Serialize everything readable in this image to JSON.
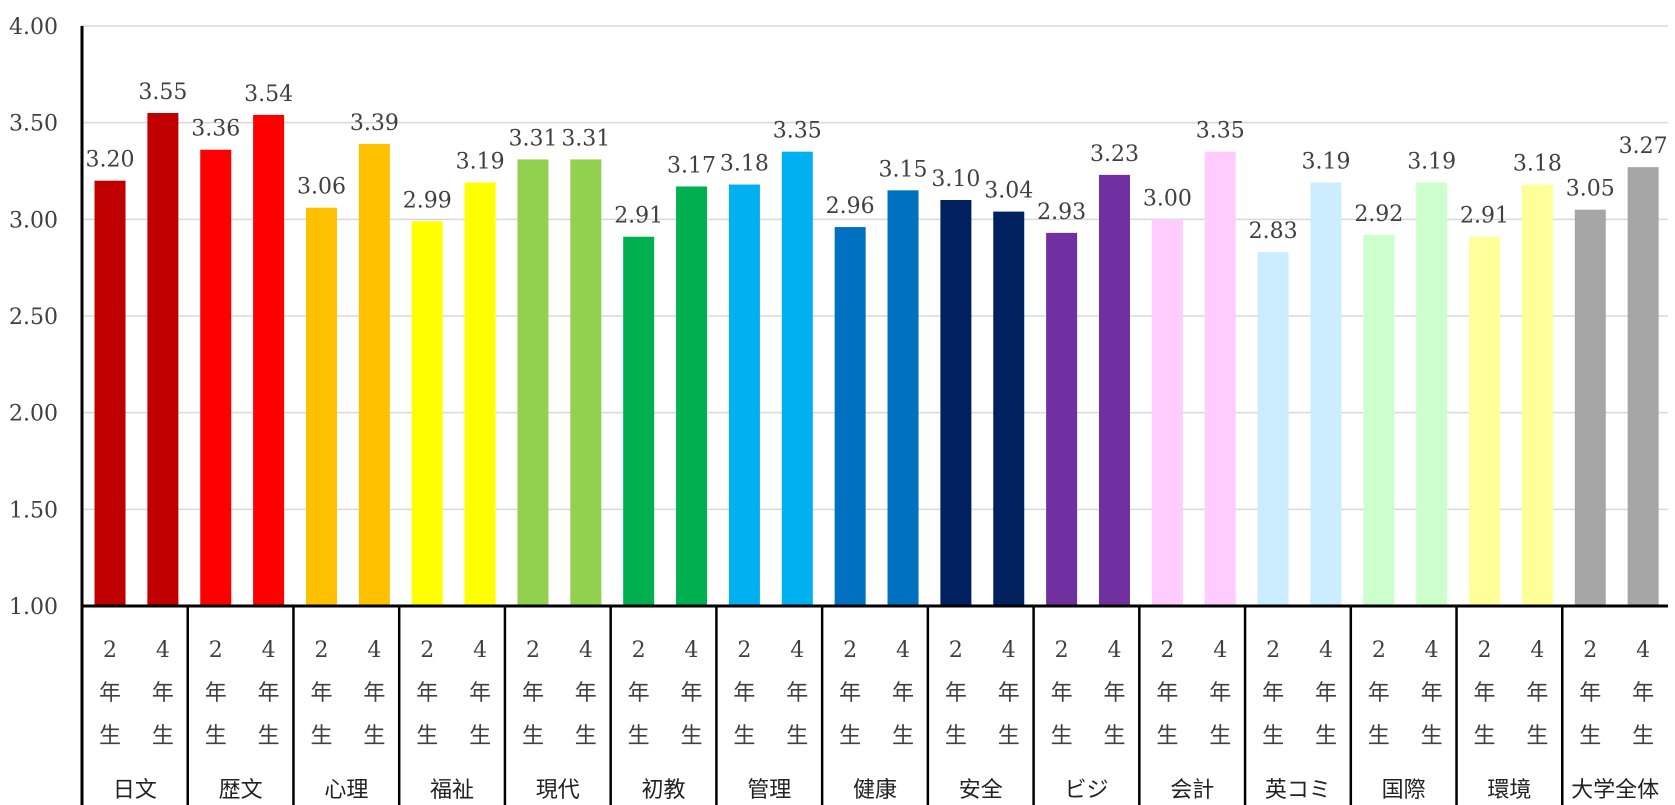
{
  "chart_data": {
    "type": "bar",
    "ylim": [
      1.0,
      4.0
    ],
    "y_ticks": [
      "1.00",
      "1.50",
      "2.00",
      "2.50",
      "3.00",
      "3.50",
      "4.00"
    ],
    "grid": true,
    "categories": [
      "日文",
      "歴文",
      "心理",
      "福祉",
      "現代",
      "初教",
      "管理",
      "健康",
      "安全",
      "ビジ",
      "会計",
      "英コミ",
      "国際",
      "環境",
      "大学全体"
    ],
    "subcategories": [
      [
        "2",
        "年",
        "生"
      ],
      [
        "4",
        "年",
        "生"
      ]
    ],
    "values_2nd_year": [
      3.2,
      3.36,
      3.06,
      2.99,
      3.31,
      2.91,
      3.18,
      2.96,
      3.1,
      2.93,
      3.0,
      2.83,
      2.92,
      2.91,
      3.05
    ],
    "values_4th_year": [
      3.55,
      3.54,
      3.39,
      3.19,
      3.31,
      3.17,
      3.35,
      3.15,
      3.04,
      3.23,
      3.35,
      3.19,
      3.19,
      3.18,
      3.27
    ],
    "labels_2nd_year": [
      "3.20",
      "3.36",
      "3.06",
      "2.99",
      "3.31",
      "2.91",
      "3.18",
      "2.96",
      "3.10",
      "2.93",
      "3.00",
      "2.83",
      "2.92",
      "2.91",
      "3.05"
    ],
    "labels_4th_year": [
      "3.55",
      "3.54",
      "3.39",
      "3.19",
      "3.31",
      "3.17",
      "3.35",
      "3.15",
      "3.04",
      "3.23",
      "3.35",
      "3.19",
      "3.19",
      "3.18",
      "3.27"
    ],
    "colors": [
      "#C00000",
      "#FF0000",
      "#FFC000",
      "#FFFF00",
      "#92D050",
      "#00B050",
      "#00B0F0",
      "#0070C0",
      "#002060",
      "#7030A0",
      "#FFCCFF",
      "#CCECFF",
      "#CCFFCC",
      "#FFFF99",
      "#A6A6A6"
    ]
  }
}
